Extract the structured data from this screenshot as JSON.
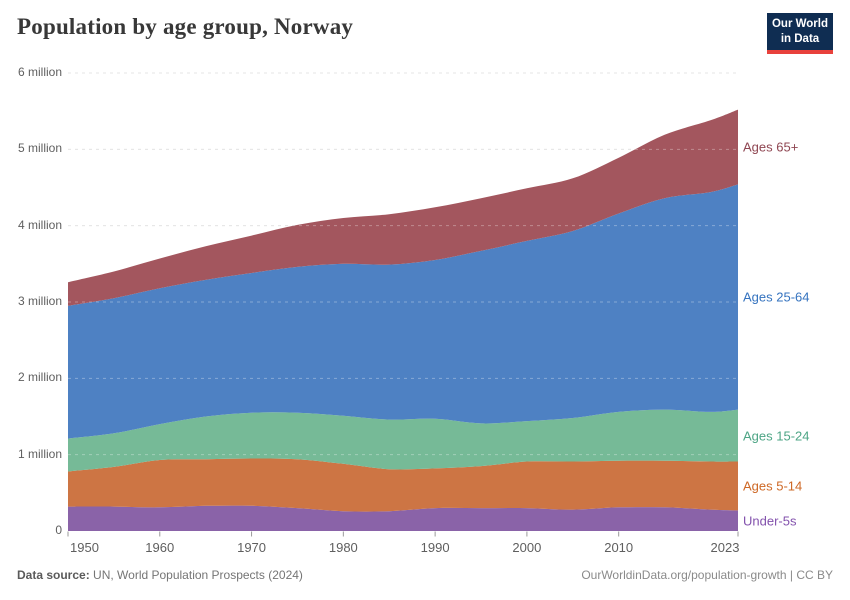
{
  "header": {
    "title": "Population by age group, Norway",
    "logo": {
      "line1": "Our World",
      "line2": "in Data",
      "bg_color": "#0f2d52",
      "bar_color": "#e8413c"
    }
  },
  "chart_data": {
    "type": "area",
    "stacked": true,
    "title": "Population by age group, Norway",
    "x": [
      1950,
      1955,
      1960,
      1965,
      1970,
      1975,
      1980,
      1985,
      1990,
      1995,
      2000,
      2005,
      2010,
      2015,
      2020,
      2023
    ],
    "series": [
      {
        "name": "Under-5s",
        "fill": "#8a63a8",
        "label_color": "#8352ad",
        "values": [
          0.32,
          0.32,
          0.31,
          0.33,
          0.33,
          0.3,
          0.26,
          0.26,
          0.3,
          0.3,
          0.3,
          0.28,
          0.31,
          0.31,
          0.28,
          0.27
        ]
      },
      {
        "name": "Ages 5-14",
        "fill": "#cd7544",
        "label_color": "#ce6825",
        "values": [
          0.46,
          0.52,
          0.62,
          0.61,
          0.62,
          0.64,
          0.62,
          0.55,
          0.52,
          0.55,
          0.61,
          0.63,
          0.61,
          0.61,
          0.63,
          0.64
        ]
      },
      {
        "name": "Ages 15-24",
        "fill": "#76ba97",
        "label_color": "#4da585",
        "values": [
          0.43,
          0.44,
          0.47,
          0.56,
          0.6,
          0.61,
          0.63,
          0.65,
          0.65,
          0.56,
          0.53,
          0.57,
          0.64,
          0.67,
          0.65,
          0.68
        ]
      },
      {
        "name": "Ages 25-64",
        "fill": "#4e81c3",
        "label_color": "#3573bf",
        "values": [
          1.74,
          1.77,
          1.78,
          1.79,
          1.83,
          1.91,
          1.99,
          2.03,
          2.08,
          2.26,
          2.36,
          2.45,
          2.6,
          2.77,
          2.88,
          2.95
        ]
      },
      {
        "name": "Ages 65+",
        "fill": "#a3565e",
        "label_color": "#8f4652",
        "values": [
          0.31,
          0.35,
          0.39,
          0.44,
          0.49,
          0.55,
          0.6,
          0.66,
          0.69,
          0.69,
          0.69,
          0.69,
          0.73,
          0.83,
          0.94,
          0.98
        ]
      }
    ],
    "yticks": [
      {
        "value": 0,
        "label": "0"
      },
      {
        "value": 1,
        "label": "1 million"
      },
      {
        "value": 2,
        "label": "2 million"
      },
      {
        "value": 3,
        "label": "3 million"
      },
      {
        "value": 4,
        "label": "4 million"
      },
      {
        "value": 5,
        "label": "5 million"
      },
      {
        "value": 6,
        "label": "6 million"
      }
    ],
    "xticks": [
      {
        "value": 1950,
        "label": "1950"
      },
      {
        "value": 1960,
        "label": "1960"
      },
      {
        "value": 1970,
        "label": "1970"
      },
      {
        "value": 1980,
        "label": "1980"
      },
      {
        "value": 1990,
        "label": "1990"
      },
      {
        "value": 2000,
        "label": "2000"
      },
      {
        "value": 2010,
        "label": "2010"
      },
      {
        "value": 2023,
        "label": "2023"
      }
    ],
    "xlim": [
      1950,
      2023
    ],
    "ylim": [
      0,
      6
    ],
    "grid": "dashed-horizontal",
    "grid_color": "#d9d9d9",
    "legend_position": "right"
  },
  "footer": {
    "source_label": "Data source:",
    "source_text": " UN, World Population Prospects (2024)",
    "credit": "OurWorldinData.org/population-growth | CC BY"
  }
}
